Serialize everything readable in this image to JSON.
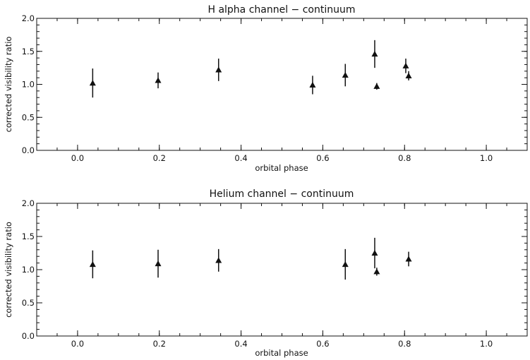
{
  "chart_data": [
    {
      "type": "scatter",
      "title": "H alpha channel − continuum",
      "xlabel": "orbital phase",
      "ylabel": "corrected visibility ratio",
      "xlim": [
        -0.1,
        1.1
      ],
      "ylim": [
        0.0,
        2.0
      ],
      "xticks": [
        "0.0",
        "0.2",
        "0.4",
        "0.6",
        "0.8",
        "1.0"
      ],
      "yticks": [
        "0.0",
        "0.5",
        "1.0",
        "1.5",
        "2.0"
      ],
      "grid": false,
      "marker": "triangle",
      "points": [
        {
          "x": 0.037,
          "y": 1.02,
          "err": 0.22
        },
        {
          "x": 0.197,
          "y": 1.06,
          "err": 0.12
        },
        {
          "x": 0.345,
          "y": 1.22,
          "err": 0.17
        },
        {
          "x": 0.575,
          "y": 0.99,
          "err": 0.14
        },
        {
          "x": 0.655,
          "y": 1.14,
          "err": 0.17
        },
        {
          "x": 0.727,
          "y": 1.46,
          "err": 0.21
        },
        {
          "x": 0.732,
          "y": 0.97,
          "err": 0.05
        },
        {
          "x": 0.803,
          "y": 1.28,
          "err": 0.11
        },
        {
          "x": 0.81,
          "y": 1.13,
          "err": 0.07
        }
      ]
    },
    {
      "type": "scatter",
      "title": "Helium channel − continuum",
      "xlabel": "orbital phase",
      "ylabel": "corrected visibility ratio",
      "xlim": [
        -0.1,
        1.1
      ],
      "ylim": [
        0.0,
        2.0
      ],
      "xticks": [
        "0.0",
        "0.2",
        "0.4",
        "0.6",
        "0.8",
        "1.0"
      ],
      "yticks": [
        "0.0",
        "0.5",
        "1.0",
        "1.5",
        "2.0"
      ],
      "grid": false,
      "marker": "triangle",
      "points": [
        {
          "x": 0.037,
          "y": 1.08,
          "err": 0.21
        },
        {
          "x": 0.197,
          "y": 1.09,
          "err": 0.21
        },
        {
          "x": 0.345,
          "y": 1.14,
          "err": 0.17
        },
        {
          "x": 0.655,
          "y": 1.08,
          "err": 0.23
        },
        {
          "x": 0.727,
          "y": 1.25,
          "err": 0.23
        },
        {
          "x": 0.732,
          "y": 0.97,
          "err": 0.06
        },
        {
          "x": 0.81,
          "y": 1.16,
          "err": 0.11
        }
      ]
    }
  ]
}
